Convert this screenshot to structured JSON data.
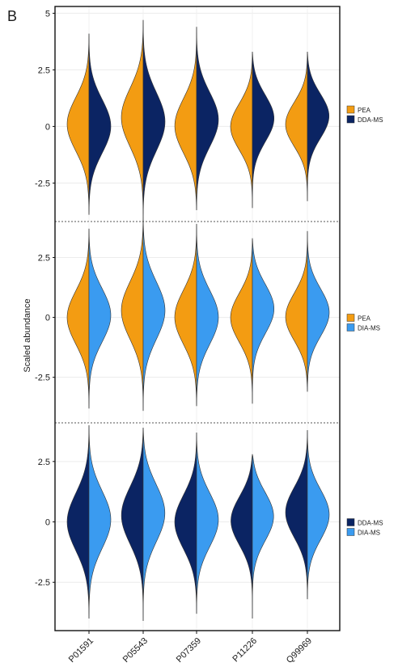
{
  "panel_label": "B",
  "ylabel": "Scaled abundance",
  "colors": {
    "PEA": "#F39C12",
    "DDA-MS": "#0B2463",
    "DIA-MS": "#3A9BF0"
  },
  "chart_data": {
    "type": "split-violin",
    "categories": [
      "P01591",
      "P05543",
      "P07359",
      "P11226",
      "Q99969"
    ],
    "ylabel": "Scaled abundance",
    "grid": true,
    "panels": [
      {
        "left": "PEA",
        "right": "DDA-MS",
        "legend": [
          "PEA",
          "DDA-MS"
        ],
        "ylim": [
          -4.2,
          5.3
        ],
        "yticks": [
          -2.5,
          0,
          2.5,
          5
        ],
        "range": [
          [
            -3.9,
            4.1
          ],
          [
            -4.0,
            4.7
          ],
          [
            -3.7,
            4.4
          ],
          [
            -3.6,
            3.3
          ],
          [
            -3.3,
            3.3
          ]
        ],
        "peak_left": [
          0.1,
          0.4,
          0.0,
          0.0,
          0.1
        ],
        "peak_right": [
          0.0,
          0.2,
          0.3,
          0.4,
          0.5
        ]
      },
      {
        "left": "PEA",
        "right": "DIA-MS",
        "legend": [
          "PEA",
          "DIA-MS"
        ],
        "ylim": [
          -4.4,
          4.0
        ],
        "yticks": [
          -2.5,
          0,
          2.5
        ],
        "range": [
          [
            -3.8,
            3.7
          ],
          [
            -3.9,
            4.2
          ],
          [
            -3.7,
            3.9
          ],
          [
            -3.6,
            3.3
          ],
          [
            -3.1,
            3.6
          ]
        ],
        "peak_left": [
          0.0,
          0.3,
          0.0,
          0.0,
          0.0
        ],
        "peak_right": [
          0.1,
          0.3,
          0.0,
          0.4,
          0.2
        ]
      },
      {
        "left": "DDA-MS",
        "right": "DIA-MS",
        "legend": [
          "DDA-MS",
          "DIA-MS"
        ],
        "ylim": [
          -4.5,
          4.1
        ],
        "yticks": [
          -2.5,
          0,
          2.5
        ],
        "range": [
          [
            -4.0,
            4.0
          ],
          [
            -4.1,
            3.9
          ],
          [
            -3.8,
            3.7
          ],
          [
            -4.0,
            2.8
          ],
          [
            -3.2,
            3.8
          ]
        ],
        "peak_left": [
          0.0,
          0.3,
          0.0,
          0.1,
          0.4
        ],
        "peak_right": [
          0.1,
          0.4,
          0.1,
          0.3,
          0.3
        ]
      }
    ]
  }
}
